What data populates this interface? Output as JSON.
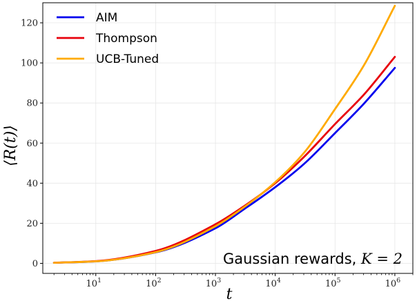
{
  "chart_data": {
    "type": "line",
    "title": "",
    "xlabel": "t",
    "ylabel": "⟨R(t)⟩",
    "x_scale": "log",
    "xlim": [
      1.3,
      2000000
    ],
    "ylim": [
      -5,
      130
    ],
    "grid": true,
    "legend_position": "top-left",
    "annotation": {
      "prefix": "Gaussian rewards, ",
      "math": "K = 2"
    },
    "x_ticks": [
      {
        "base": "10",
        "exp": "1",
        "value": 10
      },
      {
        "base": "10",
        "exp": "2",
        "value": 100
      },
      {
        "base": "10",
        "exp": "3",
        "value": 1000
      },
      {
        "base": "10",
        "exp": "4",
        "value": 10000
      },
      {
        "base": "10",
        "exp": "5",
        "value": 100000
      },
      {
        "base": "10",
        "exp": "6",
        "value": 1000000
      }
    ],
    "y_ticks": [
      {
        "label": "0",
        "value": 0
      },
      {
        "label": "20",
        "value": 20
      },
      {
        "label": "40",
        "value": 40
      },
      {
        "label": "60",
        "value": 60
      },
      {
        "label": "80",
        "value": 80
      },
      {
        "label": "100",
        "value": 100
      },
      {
        "label": "120",
        "value": 120
      }
    ],
    "x": [
      2,
      10,
      100,
      1000,
      3000,
      10000,
      30000,
      100000,
      300000,
      1000000
    ],
    "series": [
      {
        "name": "AIM",
        "color": "#0000ee",
        "values": [
          0.3,
          1.0,
          5.5,
          17.5,
          27.0,
          38.0,
          49.5,
          65.0,
          79.5,
          97.5
        ]
      },
      {
        "name": "Thompson",
        "color": "#e8000b",
        "values": [
          0.3,
          1.1,
          6.2,
          19.5,
          28.5,
          40.0,
          53.0,
          69.5,
          84.0,
          103.0
        ]
      },
      {
        "name": "UCB-Tuned",
        "color": "#ffaa00",
        "values": [
          0.3,
          1.0,
          5.6,
          18.5,
          28.0,
          40.5,
          55.0,
          77.0,
          98.5,
          128.5
        ]
      }
    ]
  }
}
